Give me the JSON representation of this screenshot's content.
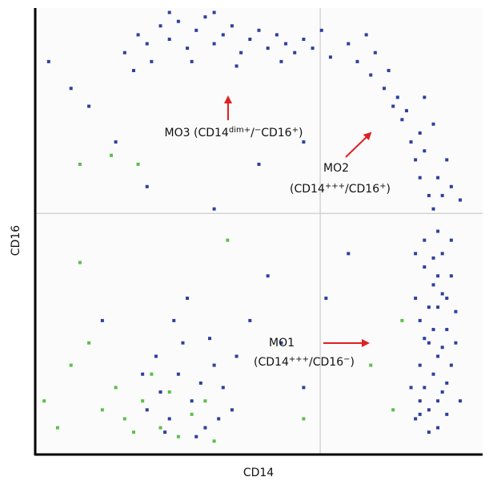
{
  "chart_data": {
    "type": "scatter",
    "x_label": "CD14",
    "y_label": "CD16",
    "xlim": [
      0,
      100
    ],
    "ylim": [
      0,
      100
    ],
    "log_scale": true,
    "quadrant_lines": {
      "x": 63.7,
      "y": 54
    },
    "series": [
      {
        "color": "#2e3f9e",
        "x": [
          85,
          86,
          87,
          88,
          89,
          90,
          91,
          92,
          93,
          88,
          86,
          90,
          92,
          89,
          87,
          91,
          93,
          85,
          88,
          90,
          92,
          94,
          86,
          89,
          91,
          87,
          90,
          93,
          84,
          95,
          88,
          90,
          86,
          91,
          89,
          92,
          94,
          87,
          90,
          85,
          72,
          75,
          78,
          80,
          82,
          84,
          85,
          86,
          88,
          89,
          76,
          79,
          81,
          83,
          86,
          87,
          90,
          91,
          70,
          74,
          87,
          89,
          92,
          93,
          95,
          20,
          23,
          25,
          28,
          30,
          32,
          34,
          36,
          38,
          40,
          42,
          44,
          46,
          48,
          50,
          52,
          54,
          56,
          58,
          60,
          62,
          64,
          66,
          26,
          35,
          45,
          55,
          22,
          30,
          40,
          25,
          28,
          30,
          32,
          35,
          38,
          40,
          42,
          27,
          33,
          36,
          44,
          31,
          29,
          37,
          41,
          24,
          39,
          45,
          34,
          48,
          52,
          55,
          60,
          65,
          3,
          8,
          12,
          18,
          25,
          40,
          50,
          60,
          70,
          15
        ],
        "values": [
          8,
          12,
          15,
          10,
          18,
          22,
          14,
          9,
          20,
          25,
          30,
          33,
          28,
          38,
          42,
          45,
          40,
          35,
          5,
          6,
          16,
          25,
          20,
          28,
          36,
          48,
          50,
          48,
          15,
          12,
          33,
          12,
          9,
          24,
          44,
          35,
          32,
          26,
          40,
          45,
          88,
          85,
          82,
          78,
          75,
          70,
          66,
          62,
          58,
          55,
          90,
          86,
          80,
          77,
          72,
          68,
          62,
          58,
          92,
          94,
          80,
          74,
          66,
          60,
          57,
          90,
          94,
          92,
          96,
          93,
          97,
          91,
          95,
          98,
          92,
          94,
          96,
          90,
          93,
          95,
          91,
          94,
          92,
          90,
          93,
          91,
          95,
          89,
          88,
          88,
          87,
          88,
          86,
          99,
          99,
          10,
          14,
          8,
          18,
          12,
          6,
          20,
          15,
          22,
          25,
          4,
          10,
          30,
          5,
          16,
          8,
          18,
          26,
          22,
          35,
          30,
          40,
          25,
          15,
          35,
          88,
          82,
          78,
          70,
          60,
          55,
          65,
          70,
          45,
          30
        ]
      },
      {
        "color": "#5cbf4a",
        "x": [
          2,
          5,
          8,
          12,
          15,
          18,
          20,
          22,
          24,
          26,
          28,
          30,
          32,
          35,
          38,
          40,
          10,
          17,
          23,
          10,
          43,
          60,
          75,
          80,
          82
        ],
        "values": [
          12,
          6,
          20,
          25,
          10,
          15,
          8,
          5,
          12,
          18,
          6,
          14,
          4,
          9,
          12,
          3,
          65,
          67,
          65,
          43,
          48,
          8,
          20,
          10,
          30
        ]
      }
    ],
    "annotations": [
      {
        "lines": [
          [
            {
              "text": "MO3 (CD14"
            },
            {
              "sup": "dim+"
            },
            {
              "text": "/"
            },
            {
              "sup": "−"
            },
            {
              "text": "CD16"
            },
            {
              "sup": "+"
            },
            {
              "text": ")"
            }
          ]
        ]
      },
      {
        "lines": [
          [
            {
              "text": "MO2"
            }
          ],
          [
            {
              "text": "(CD14"
            },
            {
              "sup": "+++"
            },
            {
              "text": "/CD16"
            },
            {
              "sup": "+"
            },
            {
              "text": ")"
            }
          ]
        ]
      },
      {
        "lines": [
          [
            {
              "text": "MO1"
            }
          ],
          [
            {
              "text": "(CD14"
            },
            {
              "sup": "+++"
            },
            {
              "text": "/CD16"
            },
            {
              "sup": "−"
            },
            {
              "text": ")"
            }
          ]
        ]
      }
    ]
  }
}
